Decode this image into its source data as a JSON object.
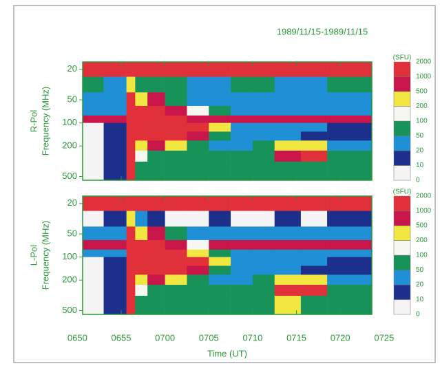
{
  "chart_data": {
    "type": "heatmap",
    "title": "1989/11/15-1989/11/15",
    "xlabel": "Time (UT)",
    "xlim": [
      410.6,
      443.6
    ],
    "xticks": [
      {
        "value": 410,
        "label": "0650"
      },
      {
        "value": 415,
        "label": "0655"
      },
      {
        "value": 420,
        "label": "0700"
      },
      {
        "value": 425,
        "label": "0705"
      },
      {
        "value": 430,
        "label": "0710"
      },
      {
        "value": 435,
        "label": "0715"
      },
      {
        "value": 440,
        "label": "0720"
      },
      {
        "value": 445,
        "label": "0725"
      }
    ],
    "time_bins": [
      410.6,
      413,
      415.6,
      416.6,
      418,
      420,
      422.5,
      425,
      427.5,
      430,
      432.5,
      435.5,
      438.5,
      443.6
    ],
    "freq_bins": [
      16,
      25,
      40,
      60,
      80,
      100,
      130,
      170,
      230,
      320,
      560
    ],
    "log_y": true,
    "y_reversed": true,
    "colorbar": {
      "label": "(SFU)",
      "levels": [
        0,
        10,
        20,
        50,
        100,
        200,
        500,
        1000,
        2000
      ],
      "colors": [
        "#f4f4f4",
        "#1c2f8a",
        "#1f8fd6",
        "#17935a",
        "#f7f7f2",
        "#f2e640",
        "#c8154a",
        "#e0303a"
      ]
    },
    "panels": [
      {
        "ylabel": [
          "R-Pol",
          "Frequency (MHz)"
        ],
        "ylim": [
          16,
          560
        ],
        "yticks": [
          20,
          50,
          100,
          200,
          500
        ],
        "z": [
          [
            1500,
            1500,
            1500,
            1500,
            1500,
            1500,
            1500,
            1500,
            1500,
            1500,
            1500,
            1500,
            1500
          ],
          [
            60,
            40,
            300,
            80,
            60,
            50,
            40,
            40,
            50,
            60,
            40,
            40,
            50
          ],
          [
            30,
            30,
            1500,
            300,
            600,
            80,
            40,
            30,
            30,
            30,
            30,
            30,
            30
          ],
          [
            40,
            30,
            1500,
            1500,
            1500,
            600,
            150,
            60,
            40,
            30,
            30,
            30,
            30
          ],
          [
            800,
            800,
            1500,
            1500,
            1500,
            1500,
            800,
            800,
            800,
            800,
            800,
            800,
            800
          ],
          [
            5,
            15,
            1500,
            1500,
            1500,
            1500,
            1500,
            300,
            40,
            30,
            20,
            20,
            15
          ],
          [
            5,
            15,
            1500,
            1200,
            1500,
            1500,
            600,
            80,
            40,
            30,
            20,
            15,
            15
          ],
          [
            5,
            15,
            1500,
            300,
            700,
            300,
            80,
            40,
            40,
            50,
            300,
            300,
            40
          ],
          [
            5,
            15,
            1500,
            150,
            80,
            60,
            60,
            60,
            60,
            60,
            600,
            1200,
            60
          ],
          [
            5,
            15,
            1500,
            60,
            80,
            60,
            60,
            60,
            60,
            60,
            80,
            60,
            60
          ]
        ]
      },
      {
        "ylabel": [
          "L-Pol",
          "Frequency (MHz)"
        ],
        "ylim": [
          16,
          560
        ],
        "yticks": [
          20,
          50,
          100,
          200,
          500
        ],
        "z": [
          [
            1500,
            1500,
            1500,
            1500,
            1500,
            1500,
            1500,
            1500,
            1500,
            1500,
            1500,
            1500,
            1500
          ],
          [
            5,
            15,
            300,
            30,
            15,
            5,
            5,
            15,
            5,
            5,
            15,
            5,
            15
          ],
          [
            30,
            30,
            1500,
            300,
            600,
            80,
            40,
            30,
            30,
            30,
            30,
            30,
            30
          ],
          [
            800,
            800,
            1500,
            1500,
            1500,
            600,
            150,
            800,
            800,
            800,
            800,
            800,
            800
          ],
          [
            40,
            30,
            1500,
            1500,
            1500,
            1500,
            300,
            60,
            40,
            30,
            30,
            30,
            30
          ],
          [
            5,
            15,
            1500,
            1500,
            1500,
            1500,
            1500,
            300,
            40,
            30,
            20,
            20,
            15
          ],
          [
            5,
            15,
            1500,
            1200,
            1500,
            1500,
            600,
            80,
            40,
            30,
            20,
            15,
            15
          ],
          [
            5,
            15,
            1500,
            300,
            700,
            300,
            80,
            40,
            40,
            50,
            300,
            300,
            40
          ],
          [
            5,
            15,
            1500,
            150,
            80,
            60,
            60,
            60,
            60,
            60,
            1200,
            1200,
            60
          ],
          [
            5,
            15,
            1500,
            60,
            80,
            60,
            60,
            60,
            60,
            60,
            300,
            60,
            60
          ]
        ]
      }
    ]
  }
}
